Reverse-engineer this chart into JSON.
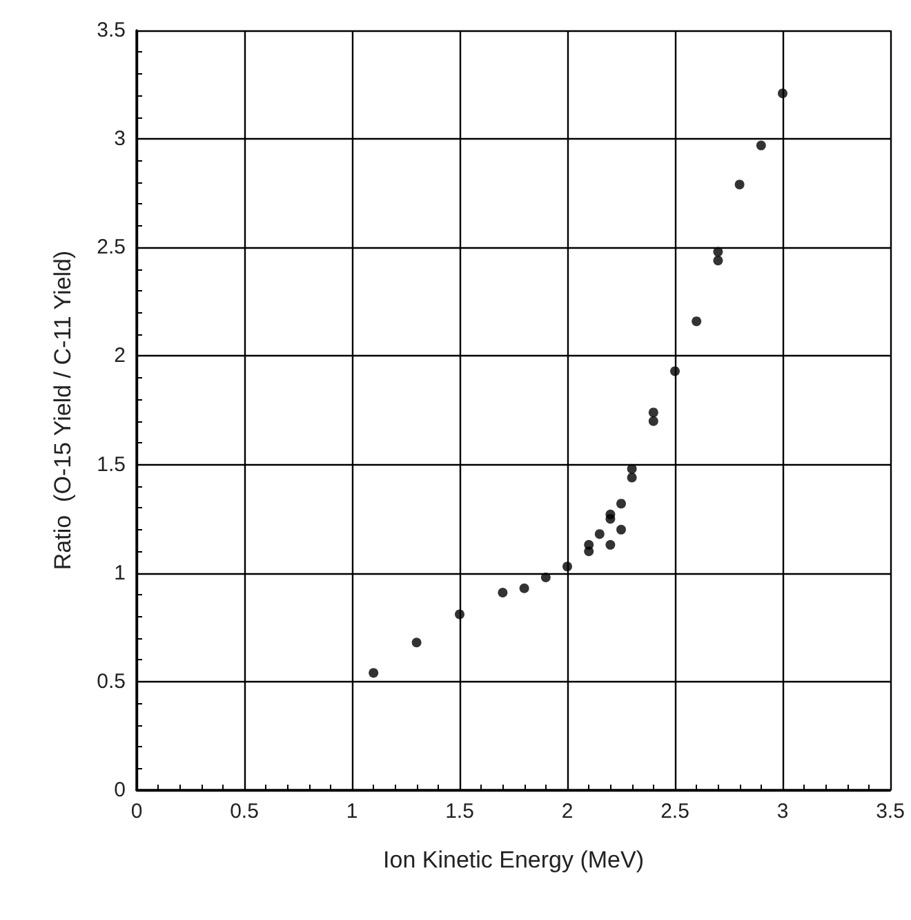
{
  "chart_data": {
    "type": "scatter",
    "xlabel": "Ion Kinetic Energy (MeV)",
    "ylabel": "Ratio  (O-15 Yield / C-11 Yield)",
    "x": [
      1.1,
      1.3,
      1.5,
      1.7,
      1.8,
      1.9,
      2.0,
      2.1,
      2.1,
      2.15,
      2.2,
      2.2,
      2.2,
      2.25,
      2.25,
      2.3,
      2.3,
      2.4,
      2.4,
      2.5,
      2.6,
      2.7,
      2.7,
      2.8,
      2.9,
      3.0
    ],
    "series": [
      {
        "color": "#000000",
        "values": [
          0.54,
          0.68,
          0.81,
          0.91,
          0.93,
          0.98,
          1.03,
          1.1,
          1.13,
          1.18,
          1.13,
          1.27,
          1.25,
          1.2,
          1.32,
          1.48,
          1.44,
          1.74,
          1.7,
          1.93,
          2.16,
          2.48,
          2.44,
          2.79,
          2.97,
          3.21
        ]
      }
    ],
    "xlim": [
      0,
      3.5
    ],
    "ylim": [
      0,
      3.5
    ],
    "xticks": [
      0,
      0.5,
      1,
      1.5,
      2,
      2.5,
      3,
      3.5
    ],
    "yticks": [
      0,
      0.5,
      1,
      1.5,
      2,
      2.5,
      3,
      3.5
    ],
    "grid": true,
    "marker": "circle"
  }
}
